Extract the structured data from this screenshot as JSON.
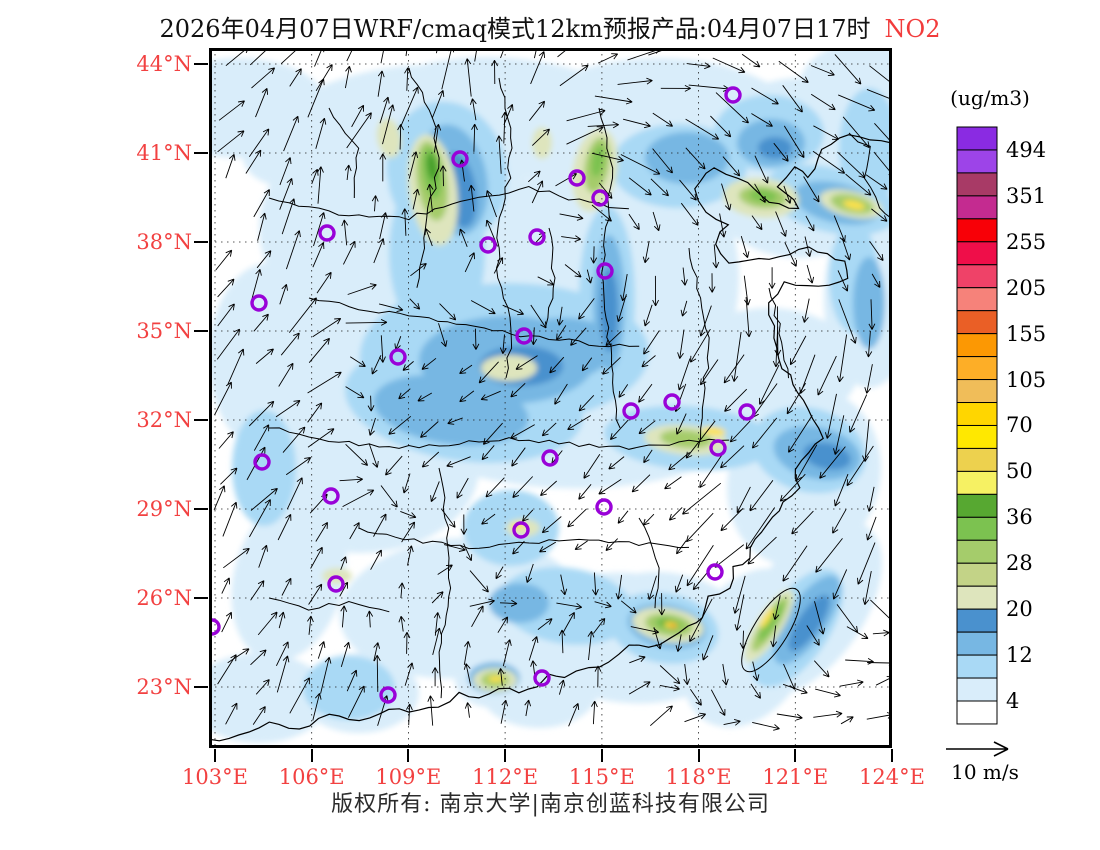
{
  "title": {
    "main": "2026年04月07日WRF/cmaq模式12km预报产品:04月07日17时",
    "species": "NO2",
    "species_color": "#f23c3c"
  },
  "axes": {
    "label_color": "#f24141",
    "lat_labels": [
      "44°N",
      "41°N",
      "38°N",
      "35°N",
      "32°N",
      "29°N",
      "26°N",
      "23°N"
    ],
    "lon_labels": [
      "103°E",
      "106°E",
      "109°E",
      "112°E",
      "115°E",
      "118°E",
      "121°E",
      "124°E"
    ]
  },
  "colorbar": {
    "unit_label": "(ug/m3)",
    "tick_labels": [
      "494",
      "351",
      "255",
      "205",
      "155",
      "105",
      "70",
      "50",
      "36",
      "28",
      "20",
      "12",
      "4"
    ],
    "cell_colors": [
      "#8A2BE2",
      "#9D44E8",
      "#A83A66",
      "#C42B90",
      "#F80007",
      "#EF0E49",
      "#EF4268",
      "#F6827A",
      "#EA5F26",
      "#FC9803",
      "#FDAE27",
      "#F0BD59",
      "#FFD600",
      "#FFE800",
      "#EDD14E",
      "#F6F163",
      "#57A831",
      "#7CC250",
      "#A5CC6B",
      "#C3D387",
      "#DEE5BD",
      "#4A91CE",
      "#77B7E3",
      "#A9D9F5",
      "#D9EDFA",
      "#FFFFFF"
    ]
  },
  "wind_legend": {
    "speed_label": "10 m/s"
  },
  "footer": {
    "copyright": "版权所有: 南京大学|南京创蓝科技有限公司"
  },
  "map": {
    "marker_color": "#9902D8",
    "palette": {
      "b1": "#D9EDFA",
      "b2": "#A9D9F5",
      "b3": "#77B7E3",
      "b4": "#4A91CE",
      "g1": "#DEE5BD",
      "g2": "#A5CC6B",
      "g3": "#7CC250",
      "g4": "#47A02A",
      "y1": "#F6F163",
      "y2": "#FFE24A",
      "o1": "#FC9803"
    },
    "field": [
      [
        "b1",
        30,
        60,
        90,
        50,
        0
      ],
      [
        "b1",
        160,
        80,
        130,
        55,
        -15
      ],
      [
        "b1",
        300,
        70,
        140,
        60,
        5
      ],
      [
        "b1",
        450,
        90,
        150,
        80,
        0
      ],
      [
        "b1",
        590,
        120,
        100,
        90,
        0
      ],
      [
        "b1",
        650,
        40,
        60,
        45,
        0
      ],
      [
        "b1",
        120,
        180,
        70,
        80,
        0
      ],
      [
        "b1",
        230,
        250,
        190,
        120,
        -12
      ],
      [
        "b1",
        350,
        330,
        220,
        110,
        3
      ],
      [
        "b1",
        420,
        230,
        110,
        140,
        0
      ],
      [
        "b1",
        150,
        420,
        120,
        85,
        0
      ],
      [
        "b1",
        60,
        310,
        60,
        95,
        0
      ],
      [
        "b1",
        560,
        320,
        90,
        60,
        0
      ],
      [
        "b1",
        595,
        430,
        75,
        90,
        20
      ],
      [
        "b1",
        660,
        250,
        45,
        90,
        0
      ],
      [
        "b1",
        250,
        560,
        120,
        70,
        -5
      ],
      [
        "b1",
        420,
        590,
        110,
        65,
        5
      ],
      [
        "b1",
        460,
        575,
        80,
        50,
        10
      ],
      [
        "b1",
        540,
        600,
        60,
        85,
        30
      ],
      [
        "b1",
        600,
        560,
        55,
        100,
        35
      ],
      [
        "b1",
        80,
        530,
        55,
        85,
        15
      ],
      [
        "b1",
        50,
        650,
        70,
        45,
        0
      ],
      [
        "b1",
        150,
        645,
        60,
        40,
        0
      ],
      [
        "b1",
        330,
        640,
        60,
        40,
        0
      ],
      [
        "b1",
        286,
        632,
        40,
        28,
        0
      ],
      [
        "b1",
        560,
        580,
        30,
        60,
        32
      ],
      [
        "b2",
        238,
        125,
        60,
        72,
        -12
      ],
      [
        "b2",
        228,
        205,
        48,
        88,
        0
      ],
      [
        "b2",
        300,
        305,
        140,
        70,
        0
      ],
      [
        "b2",
        255,
        355,
        120,
        58,
        8
      ],
      [
        "b2",
        398,
        250,
        28,
        92,
        0
      ],
      [
        "b2",
        470,
        118,
        68,
        42,
        0
      ],
      [
        "b2",
        560,
        85,
        55,
        38,
        0
      ],
      [
        "b2",
        622,
        152,
        68,
        32,
        14
      ],
      [
        "b2",
        480,
        390,
        85,
        32,
        4
      ],
      [
        "b2",
        600,
        402,
        58,
        42,
        15
      ],
      [
        "b2",
        302,
        480,
        48,
        38,
        0
      ],
      [
        "b2",
        358,
        558,
        68,
        38,
        8
      ],
      [
        "b2",
        455,
        580,
        55,
        35,
        10
      ],
      [
        "b2",
        588,
        580,
        32,
        68,
        34
      ],
      [
        "b2",
        55,
        420,
        32,
        58,
        0
      ],
      [
        "b2",
        140,
        640,
        46,
        32,
        0
      ],
      [
        "b2",
        240,
        300,
        90,
        60,
        -10
      ],
      [
        "b2",
        660,
        100,
        30,
        60,
        0
      ],
      [
        "b2",
        645,
        230,
        25,
        55,
        0
      ],
      [
        "b3",
        244,
        132,
        34,
        56,
        -10
      ],
      [
        "b3",
        298,
        312,
        88,
        44,
        0
      ],
      [
        "b3",
        242,
        362,
        78,
        34,
        8
      ],
      [
        "b3",
        400,
        255,
        16,
        68,
        0
      ],
      [
        "b3",
        478,
        110,
        42,
        26,
        0
      ],
      [
        "b3",
        562,
        95,
        34,
        24,
        0
      ],
      [
        "b3",
        628,
        155,
        44,
        20,
        13
      ],
      [
        "b3",
        608,
        405,
        44,
        26,
        12
      ],
      [
        "b3",
        458,
        578,
        40,
        22,
        10
      ],
      [
        "b3",
        598,
        572,
        20,
        52,
        34
      ],
      [
        "b3",
        348,
        302,
        58,
        32,
        -5
      ],
      [
        "b3",
        660,
        255,
        16,
        46,
        0
      ],
      [
        "b3",
        310,
        555,
        30,
        20,
        0
      ],
      [
        "b3",
        285,
        630,
        26,
        16,
        0
      ],
      [
        "b4",
        250,
        142,
        17,
        38,
        -10
      ],
      [
        "b4",
        312,
        318,
        42,
        20,
        0
      ],
      [
        "b4",
        400,
        262,
        9,
        42,
        0
      ],
      [
        "b4",
        618,
        408,
        24,
        13,
        12
      ],
      [
        "b4",
        460,
        580,
        24,
        12,
        10
      ],
      [
        "b4",
        600,
        575,
        11,
        33,
        34
      ],
      [
        "b4",
        566,
        100,
        17,
        11,
        0
      ],
      [
        "g1",
        224,
        142,
        24,
        56,
        -8
      ],
      [
        "g1",
        386,
        122,
        22,
        42,
        10
      ],
      [
        "g1",
        552,
        150,
        38,
        20,
        5
      ],
      [
        "g1",
        642,
        156,
        32,
        13,
        13
      ],
      [
        "g1",
        300,
        320,
        28,
        13,
        0
      ],
      [
        "g1",
        477,
        392,
        42,
        15,
        5
      ],
      [
        "g1",
        459,
        577,
        36,
        17,
        9
      ],
      [
        "g1",
        560,
        578,
        13,
        42,
        32
      ],
      [
        "g1",
        314,
        480,
        17,
        9,
        0
      ],
      [
        "g1",
        128,
        528,
        15,
        8,
        0
      ],
      [
        "g1",
        286,
        632,
        22,
        12,
        0
      ],
      [
        "g1",
        180,
        90,
        12,
        20,
        -10
      ],
      [
        "g1",
        333,
        95,
        10,
        16,
        0
      ],
      [
        "g2",
        223,
        133,
        15,
        40,
        -8
      ],
      [
        "g2",
        388,
        117,
        12,
        28,
        10
      ],
      [
        "g2",
        554,
        149,
        24,
        11,
        5
      ],
      [
        "g2",
        643,
        156,
        22,
        9,
        13
      ],
      [
        "g2",
        460,
        577,
        24,
        11,
        9
      ],
      [
        "g2",
        561,
        576,
        8,
        32,
        32
      ],
      [
        "g2",
        286,
        632,
        14,
        8,
        0
      ],
      [
        "g2",
        477,
        391,
        26,
        9,
        5
      ],
      [
        "g3",
        223,
        125,
        9,
        26,
        -8
      ],
      [
        "g3",
        554,
        148,
        14,
        6,
        5
      ],
      [
        "g3",
        460,
        576,
        14,
        6,
        9
      ],
      [
        "g3",
        562,
        574,
        5,
        22,
        32
      ],
      [
        "g3",
        389,
        113,
        6,
        16,
        10
      ],
      [
        "g4",
        223,
        119,
        5,
        14,
        -8
      ],
      [
        "g4",
        460,
        576,
        8,
        3.5,
        9
      ],
      [
        "y2",
        645,
        157,
        11,
        4,
        13
      ],
      [
        "y2",
        462,
        577,
        7,
        3,
        9
      ],
      [
        "y2",
        505,
        383,
        12,
        4,
        8
      ],
      [
        "y2",
        309,
        478,
        7,
        3,
        0
      ],
      [
        "y2",
        287,
        631,
        8,
        3,
        0
      ],
      [
        "y2",
        558,
        570,
        3,
        12,
        32
      ],
      [
        "o1",
        464,
        578,
        3.5,
        2,
        9
      ]
    ],
    "stations": [
      [
        251,
        111
      ],
      [
        524,
        47
      ],
      [
        368,
        130
      ],
      [
        391,
        150
      ],
      [
        328,
        189
      ],
      [
        279,
        197
      ],
      [
        118,
        185
      ],
      [
        50,
        255
      ],
      [
        315,
        288
      ],
      [
        189,
        309
      ],
      [
        396,
        223
      ],
      [
        422,
        363
      ],
      [
        463,
        354
      ],
      [
        538,
        364
      ],
      [
        509,
        400
      ],
      [
        53,
        414
      ],
      [
        122,
        448
      ],
      [
        341,
        410
      ],
      [
        395,
        459
      ],
      [
        312,
        482
      ],
      [
        127,
        536
      ],
      [
        3,
        579
      ],
      [
        179,
        647
      ],
      [
        333,
        630
      ],
      [
        506,
        524
      ]
    ],
    "wind_grid": [
      [
        -45,
        -55,
        -75,
        -85,
        -20,
        10,
        35,
        30
      ],
      [
        -50,
        -60,
        -85,
        -80,
        25,
        45,
        50,
        40
      ],
      [
        -55,
        -75,
        -90,
        -120,
        100,
        80,
        70,
        60
      ],
      [
        -60,
        -50,
        150,
        140,
        135,
        120,
        110,
        100
      ],
      [
        -55,
        -45,
        160,
        145,
        135,
        135,
        120,
        115
      ],
      [
        -50,
        -60,
        -80,
        150,
        140,
        135,
        130,
        120
      ],
      [
        -45,
        -70,
        -85,
        -90,
        -75,
        135,
        60,
        -20
      ],
      [
        -40,
        -60,
        -85,
        -90,
        -80,
        -45,
        -20,
        -30
      ]
    ]
  }
}
